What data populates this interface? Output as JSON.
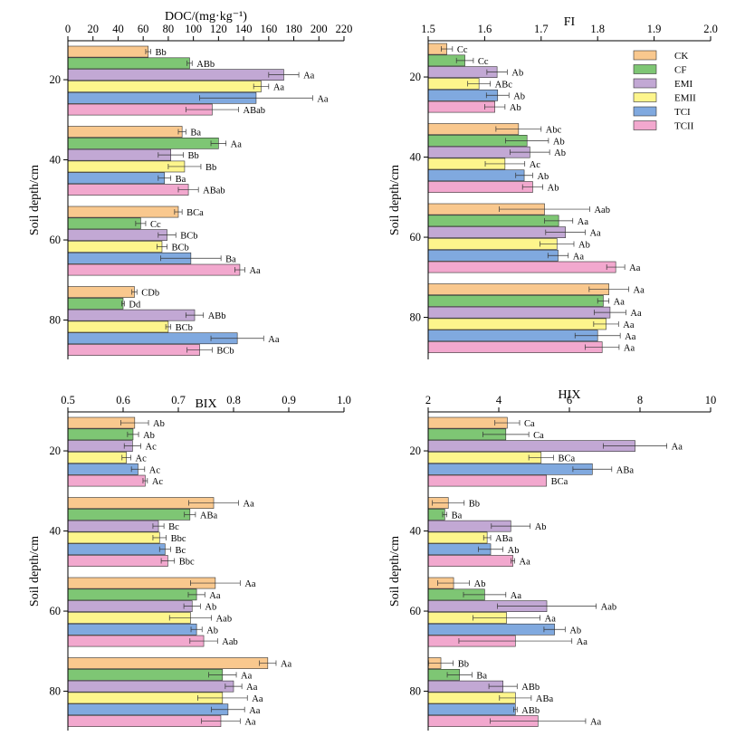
{
  "legend": {
    "entries": [
      {
        "name": "CK",
        "color": "#F9C88E"
      },
      {
        "name": "CF",
        "color": "#7EC674"
      },
      {
        "name": "EMI",
        "color": "#C2A8D4"
      },
      {
        "name": "EMII",
        "color": "#FDF58C"
      },
      {
        "name": "TCI",
        "color": "#80A9DF"
      },
      {
        "name": "TCII",
        "color": "#F2A8CE"
      }
    ]
  },
  "chart_data": [
    {
      "type": "bar",
      "orientation": "horizontal",
      "title": "DOC/(mg·kg⁻¹)",
      "ylabel": "Soil depth/cm",
      "xlim": [
        0,
        220
      ],
      "xticks": [
        "0",
        "20",
        "40",
        "60",
        "80",
        "100",
        "120",
        "140",
        "160",
        "180",
        "200",
        "220"
      ],
      "categories": [
        "20",
        "40",
        "60",
        "80"
      ],
      "series_names": [
        "CK",
        "CF",
        "EMI",
        "EMII",
        "TCI",
        "TCII"
      ],
      "groups": [
        {
          "depth": "20",
          "values": [
            64,
            97,
            172,
            154,
            150,
            115
          ],
          "errors": [
            2,
            2,
            12,
            6,
            45,
            21
          ],
          "labels": [
            "Bb",
            "ABb",
            "Aa",
            "Aa",
            "Aa",
            "ABab"
          ]
        },
        {
          "depth": "40",
          "values": [
            91,
            120,
            82,
            93,
            77,
            96
          ],
          "errors": [
            3,
            6,
            10,
            13,
            5,
            8
          ],
          "labels": [
            "Ba",
            "Aa",
            "Bb",
            "Bb",
            "Ba",
            "ABab"
          ]
        },
        {
          "depth": "60",
          "values": [
            88,
            58,
            79,
            75,
            98,
            137
          ],
          "errors": [
            3,
            4,
            7,
            4,
            24,
            4
          ],
          "labels": [
            "BCa",
            "Cc",
            "BCb",
            "BCb",
            "Ba",
            "Aa"
          ]
        },
        {
          "depth": "80",
          "values": [
            53,
            44,
            101,
            80,
            135,
            105
          ],
          "errors": [
            2,
            1,
            7,
            2,
            21,
            10
          ],
          "labels": [
            "CDb",
            "Dd",
            "ABb",
            "BCb",
            "Aa",
            "BCb"
          ]
        }
      ]
    },
    {
      "type": "bar",
      "orientation": "horizontal",
      "title": "FI",
      "ylabel": "Soil depth/cm",
      "xlim": [
        1.5,
        2.0
      ],
      "xticks": [
        "1.5",
        "1.6",
        "1.7",
        "1.8",
        "1.9",
        "2.0"
      ],
      "categories": [
        "20",
        "40",
        "60",
        "80"
      ],
      "series_names": [
        "CK",
        "CF",
        "EMI",
        "EMII",
        "TCI",
        "TCII"
      ],
      "groups": [
        {
          "depth": "20",
          "values": [
            1.533,
            1.565,
            1.622,
            1.59,
            1.623,
            1.618
          ],
          "errors": [
            0.01,
            0.015,
            0.018,
            0.02,
            0.02,
            0.018
          ],
          "labels": [
            "Cc",
            "Cc",
            "Ab",
            "ABc",
            "Ab",
            "Ab"
          ]
        },
        {
          "depth": "40",
          "values": [
            1.66,
            1.675,
            1.68,
            1.636,
            1.67,
            1.685
          ],
          "errors": [
            0.04,
            0.038,
            0.035,
            0.035,
            0.015,
            0.018
          ],
          "labels": [
            "Abc",
            "Ab",
            "Ab",
            "Ac",
            "Ab",
            "Ab"
          ]
        },
        {
          "depth": "60",
          "values": [
            1.706,
            1.731,
            1.743,
            1.728,
            1.73,
            1.832
          ],
          "errors": [
            0.08,
            0.025,
            0.035,
            0.03,
            0.018,
            0.016
          ],
          "labels": [
            "Aab",
            "Aa",
            "Aa",
            "Ab",
            "Aa",
            "Aa"
          ]
        },
        {
          "depth": "80",
          "values": [
            1.82,
            1.81,
            1.822,
            1.815,
            1.8,
            1.808
          ],
          "errors": [
            0.035,
            0.01,
            0.028,
            0.022,
            0.04,
            0.03
          ],
          "labels": [
            "Aa",
            "Aa",
            "Aa",
            "Aa",
            "Aa",
            "Aa"
          ]
        }
      ]
    },
    {
      "type": "bar",
      "orientation": "horizontal",
      "title": "BIX",
      "ylabel": "Soil depth/cm",
      "xlim": [
        0.5,
        1.0
      ],
      "xticks": [
        "0.5",
        "0.6",
        "0.7",
        "0.8",
        "0.9",
        "1.0"
      ],
      "categories": [
        "20",
        "40",
        "60",
        "80"
      ],
      "series_names": [
        "CK",
        "CF",
        "EMI",
        "EMII",
        "TCI",
        "TCII"
      ],
      "groups": [
        {
          "depth": "20",
          "values": [
            0.621,
            0.618,
            0.617,
            0.606,
            0.627,
            0.64
          ],
          "errors": [
            0.025,
            0.01,
            0.015,
            0.008,
            0.012,
            0.004
          ],
          "labels": [
            "Ab",
            "Ab",
            "Ac",
            "Ac",
            "Ac",
            "Ac"
          ]
        },
        {
          "depth": "40",
          "values": [
            0.764,
            0.721,
            0.664,
            0.666,
            0.676,
            0.681
          ],
          "errors": [
            0.045,
            0.01,
            0.01,
            0.012,
            0.01,
            0.012
          ],
          "labels": [
            "Aa",
            "ABa",
            "Bc",
            "Bbc",
            "Bc",
            "Bbc"
          ]
        },
        {
          "depth": "60",
          "values": [
            0.767,
            0.733,
            0.725,
            0.722,
            0.733,
            0.746
          ],
          "errors": [
            0.045,
            0.015,
            0.015,
            0.038,
            0.01,
            0.025
          ],
          "labels": [
            "Aa",
            "Aa",
            "Ab",
            "Aab",
            "Ab",
            "Aab"
          ]
        },
        {
          "depth": "80",
          "values": [
            0.862,
            0.78,
            0.8,
            0.78,
            0.79,
            0.777
          ],
          "errors": [
            0.015,
            0.025,
            0.015,
            0.045,
            0.03,
            0.035
          ],
          "labels": [
            "Aa",
            "Aa",
            "Aa",
            "Aa",
            "Aa",
            "Aa"
          ]
        }
      ]
    },
    {
      "type": "bar",
      "orientation": "horizontal",
      "title": "HIX",
      "ylabel": "Soil depth/cm",
      "xlim": [
        2,
        10
      ],
      "xticks": [
        "2",
        "4",
        "6",
        "8",
        "10"
      ],
      "categories": [
        "20",
        "40",
        "60",
        "80"
      ],
      "series_names": [
        "CK",
        "CF",
        "EMI",
        "EMII",
        "TCI",
        "TCII"
      ],
      "groups": [
        {
          "depth": "20",
          "values": [
            4.24,
            4.2,
            7.86,
            5.2,
            6.65,
            5.35
          ],
          "errors": [
            0.35,
            0.65,
            0.9,
            0.35,
            0.55,
            0
          ],
          "labels": [
            "Ca",
            "Ca",
            "Aa",
            "BCa",
            "ABa",
            "BCa"
          ]
        },
        {
          "depth": "40",
          "values": [
            2.57,
            2.47,
            4.34,
            3.67,
            3.77,
            4.4
          ],
          "errors": [
            0.45,
            0.06,
            0.55,
            0.1,
            0.35,
            0.05
          ],
          "labels": [
            "Bb",
            "Ba",
            "Ab",
            "ABa",
            "Ab",
            "Aa"
          ]
        },
        {
          "depth": "60",
          "values": [
            2.72,
            3.6,
            5.36,
            4.22,
            5.58,
            4.47
          ],
          "errors": [
            0.45,
            0.6,
            1.4,
            0.95,
            0.3,
            1.6
          ],
          "labels": [
            "Ab",
            "Aa",
            "Aab",
            "Aa",
            "Ab",
            "Aa"
          ]
        },
        {
          "depth": "80",
          "values": [
            2.36,
            2.89,
            4.12,
            4.47,
            4.47,
            5.11
          ],
          "errors": [
            0.35,
            0.35,
            0.4,
            0.45,
            0.05,
            1.35
          ],
          "labels": [
            "Bb",
            "Ba",
            "ABb",
            "ABa",
            "ABb",
            "Aa"
          ]
        }
      ]
    }
  ]
}
